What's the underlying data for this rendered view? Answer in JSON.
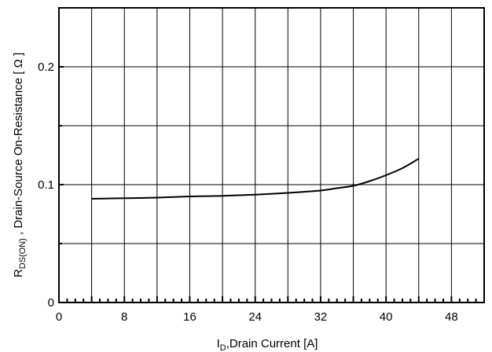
{
  "chart_data": {
    "type": "line",
    "title": "",
    "xlabel": {
      "main": "I",
      "sub": "D",
      "rest": ",Drain Current [A]"
    },
    "ylabel": {
      "main": "R",
      "sub": "DS(ON)",
      "rest": " , Drain-Source On-Resistance [ Ω ]"
    },
    "xlim": [
      0,
      52
    ],
    "ylim": [
      0,
      0.25
    ],
    "xticks": [
      0,
      8,
      16,
      24,
      32,
      40,
      48
    ],
    "xtick_labels": [
      "0",
      "8",
      "16",
      "24",
      "32",
      "40",
      "48"
    ],
    "yticks": [
      0,
      0.1,
      0.2
    ],
    "ytick_labels": [
      "0",
      "0.1",
      "0.2"
    ],
    "grid": true,
    "series": [
      {
        "x": [
          4,
          8,
          12,
          16,
          20,
          24,
          28,
          32,
          34,
          36,
          38,
          40,
          42,
          44
        ],
        "y": [
          0.088,
          0.0885,
          0.089,
          0.09,
          0.0905,
          0.0915,
          0.093,
          0.095,
          0.097,
          0.099,
          0.103,
          0.108,
          0.114,
          0.122
        ],
        "color": "#000000"
      }
    ]
  }
}
